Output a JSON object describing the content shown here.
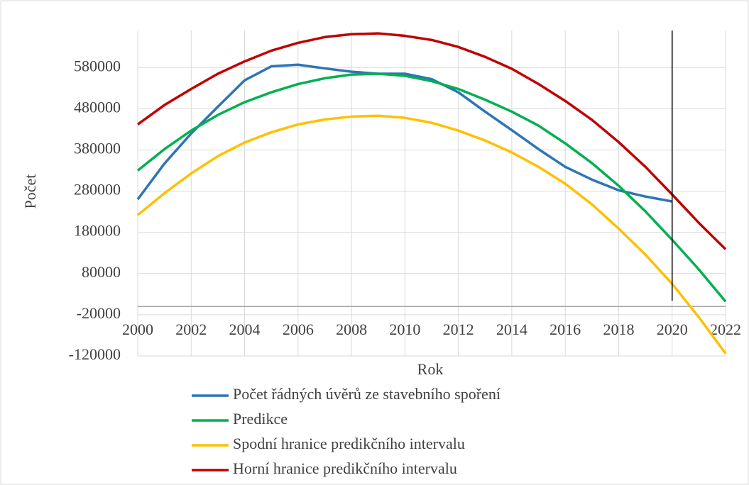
{
  "chart_data": {
    "type": "line",
    "x_label": "Rok",
    "y_label": "Počet",
    "x": [
      2000,
      2001,
      2002,
      2003,
      2004,
      2005,
      2006,
      2007,
      2008,
      2009,
      2010,
      2011,
      2012,
      2013,
      2014,
      2015,
      2016,
      2017,
      2018,
      2019,
      2020,
      2021,
      2022
    ],
    "series": [
      {
        "name": "Počet řádných úvěrů ze stavebního spoření",
        "color": "#2e75b6",
        "values": [
          260000,
          347000,
          420000,
          485000,
          549000,
          583000,
          587000,
          578000,
          570000,
          565000,
          565000,
          552000,
          520000,
          473000,
          428000,
          382000,
          339000,
          308000,
          282000,
          267000,
          255000,
          null,
          null
        ]
      },
      {
        "name": "Predikce",
        "color": "#00b050",
        "values": [
          330000,
          382000,
          427000,
          465000,
          496000,
          520000,
          540000,
          554000,
          563000,
          565000,
          560000,
          547000,
          528000,
          502000,
          473000,
          439000,
          396000,
          348000,
          293000,
          231000,
          162000,
          90000,
          12000
        ]
      },
      {
        "name": "Spodní hranice predikčního intervalu",
        "color": "#ffc000",
        "values": [
          222000,
          275000,
          323000,
          365000,
          398000,
          423000,
          442000,
          454000,
          461000,
          463000,
          458000,
          446000,
          427000,
          403000,
          374000,
          339000,
          298000,
          248000,
          189000,
          126000,
          55000,
          -26000,
          -114000
        ]
      },
      {
        "name": "Horní hranice predikčního intervalu",
        "color": "#c00000",
        "values": [
          442000,
          489000,
          528000,
          565000,
          595000,
          621000,
          640000,
          654000,
          661000,
          663000,
          657000,
          647000,
          630000,
          606000,
          577000,
          540000,
          499000,
          453000,
          399000,
          339000,
          272000,
          203000,
          139000
        ]
      }
    ],
    "xlim": [
      2000,
      2022
    ],
    "xticks": [
      2000,
      2002,
      2004,
      2006,
      2008,
      2010,
      2012,
      2014,
      2016,
      2018,
      2020,
      2022
    ],
    "ylim": [
      -120000,
      670000
    ],
    "yticks": [
      -120000,
      -20000,
      80000,
      180000,
      280000,
      380000,
      480000,
      580000
    ],
    "vline": 2020,
    "grid": true,
    "legend": "bottom"
  }
}
